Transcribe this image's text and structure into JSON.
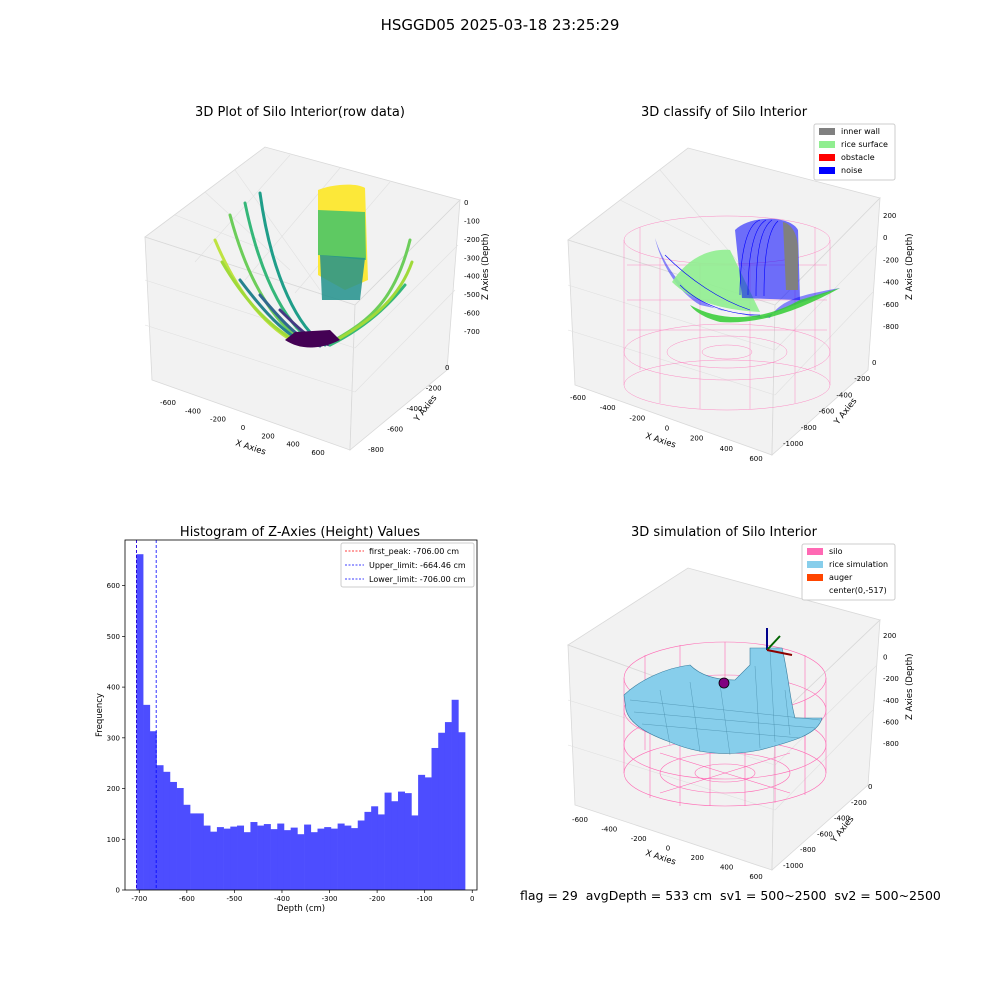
{
  "suptitle": "HSGGD05 2025-03-18 23:25:29",
  "status_line": "flag = 29  avgDepth = 533 cm  sv1 = 500~2500  sv2 = 500~2500",
  "colors": {
    "silo": "#ff69b4",
    "inner_wall": "#808080",
    "rice_surface": "#90ee90",
    "obstacle": "#ff0000",
    "noise": "#0000ff",
    "rice_simulation": "#87ceeb",
    "auger": "#ff4500",
    "hist_bar": "#4d4dff"
  },
  "plots3d": [
    {
      "title": "3D Plot of Silo Interior(row data)",
      "xlabel": "X Axies",
      "ylabel": "Y Axies",
      "zlabel": "Z Axies (Depth)",
      "xticks": [
        "-600",
        "-400",
        "-200",
        "0",
        "200",
        "400",
        "600"
      ],
      "yticks": [
        "0",
        "-200",
        "-400",
        "-600",
        "-800"
      ],
      "zticks": [
        "0",
        "-100",
        "-200",
        "-300",
        "-400",
        "-500",
        "-600",
        "-700"
      ]
    },
    {
      "title": "3D classify of Silo Interior",
      "xlabel": "X Axies",
      "ylabel": "Y Axies",
      "zlabel": "Z Axies (Depth)",
      "xticks": [
        "-600",
        "-400",
        "-200",
        "0",
        "200",
        "400",
        "600"
      ],
      "yticks": [
        "0",
        "-200",
        "-400",
        "-600",
        "-800",
        "-1000"
      ],
      "zticks": [
        "200",
        "0",
        "-200",
        "-400",
        "-600",
        "-800"
      ],
      "legend": [
        "inner wall",
        "rice surface",
        "obstacle",
        "noise"
      ]
    },
    {
      "title": "3D simulation of Silo Interior",
      "xlabel": "X Axies",
      "ylabel": "Y Axies",
      "zlabel": "Z Axies (Depth)",
      "xticks": [
        "-600",
        "-400",
        "-200",
        "0",
        "200",
        "400",
        "600"
      ],
      "yticks": [
        "0",
        "-200",
        "-400",
        "-600",
        "-800",
        "-1000"
      ],
      "zticks": [
        "200",
        "0",
        "-200",
        "-400",
        "-600",
        "-800"
      ],
      "legend": [
        "silo",
        "rice simulation",
        "auger",
        "center(0,-517)"
      ]
    }
  ],
  "chart_data": {
    "type": "bar",
    "title": "Histogram of Z-Axies (Height) Values",
    "xlabel": "Depth (cm)",
    "ylabel": "Frequency",
    "xlim": [
      -730,
      10
    ],
    "ylim": [
      0,
      690
    ],
    "xticks": [
      -700,
      -600,
      -500,
      -400,
      -300,
      -200,
      -100,
      0
    ],
    "yticks": [
      0,
      100,
      200,
      300,
      400,
      500,
      600
    ],
    "bin_start": -706,
    "bin_width": 14.1,
    "values": [
      662,
      365,
      313,
      246,
      233,
      213,
      201,
      168,
      151,
      151,
      127,
      115,
      124,
      121,
      125,
      127,
      114,
      134,
      127,
      130,
      120,
      131,
      118,
      123,
      110,
      129,
      114,
      121,
      124,
      121,
      131,
      127,
      122,
      137,
      154,
      165,
      149,
      192,
      175,
      194,
      191,
      147,
      227,
      222,
      280,
      310,
      331,
      375,
      311
    ],
    "lines": [
      {
        "label": "first_peak: -706.00 cm",
        "x": -706,
        "color": "#ff0000"
      },
      {
        "label": "Upper_limit: -664.46 cm",
        "x": -664.46,
        "color": "#0000ff"
      },
      {
        "label": "Lower_limit: -706.00 cm",
        "x": -706,
        "color": "#0000ff"
      }
    ]
  }
}
